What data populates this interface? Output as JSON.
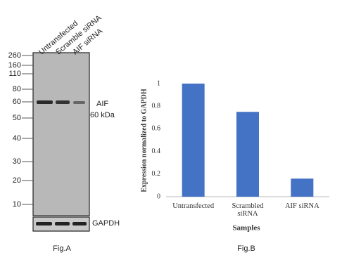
{
  "blot": {
    "lanes": [
      "Untransfected",
      "Scramble siRNA",
      "AIF siRNA"
    ],
    "markers": [
      "260",
      "160",
      "110",
      "80",
      "60",
      "50",
      "40",
      "30",
      "20",
      "10"
    ],
    "band": "AIF",
    "band_size": "60 kDa",
    "loading_control": "GAPDH",
    "caption": "Fig.A"
  },
  "chart_data": {
    "type": "bar",
    "caption": "Fig.B",
    "categories": [
      "Untransfected",
      "Scrambled siRNA",
      "AIF siRNA"
    ],
    "values": [
      1,
      0.75,
      0.16
    ],
    "color": "#4472c4",
    "ylim": [
      0,
      1
    ],
    "yticks": [
      0,
      0.2,
      0.4,
      0.6,
      0.8,
      1
    ],
    "y_label": "Expression normalized to GAPDH",
    "x_label": "Samples",
    "grid": false
  }
}
